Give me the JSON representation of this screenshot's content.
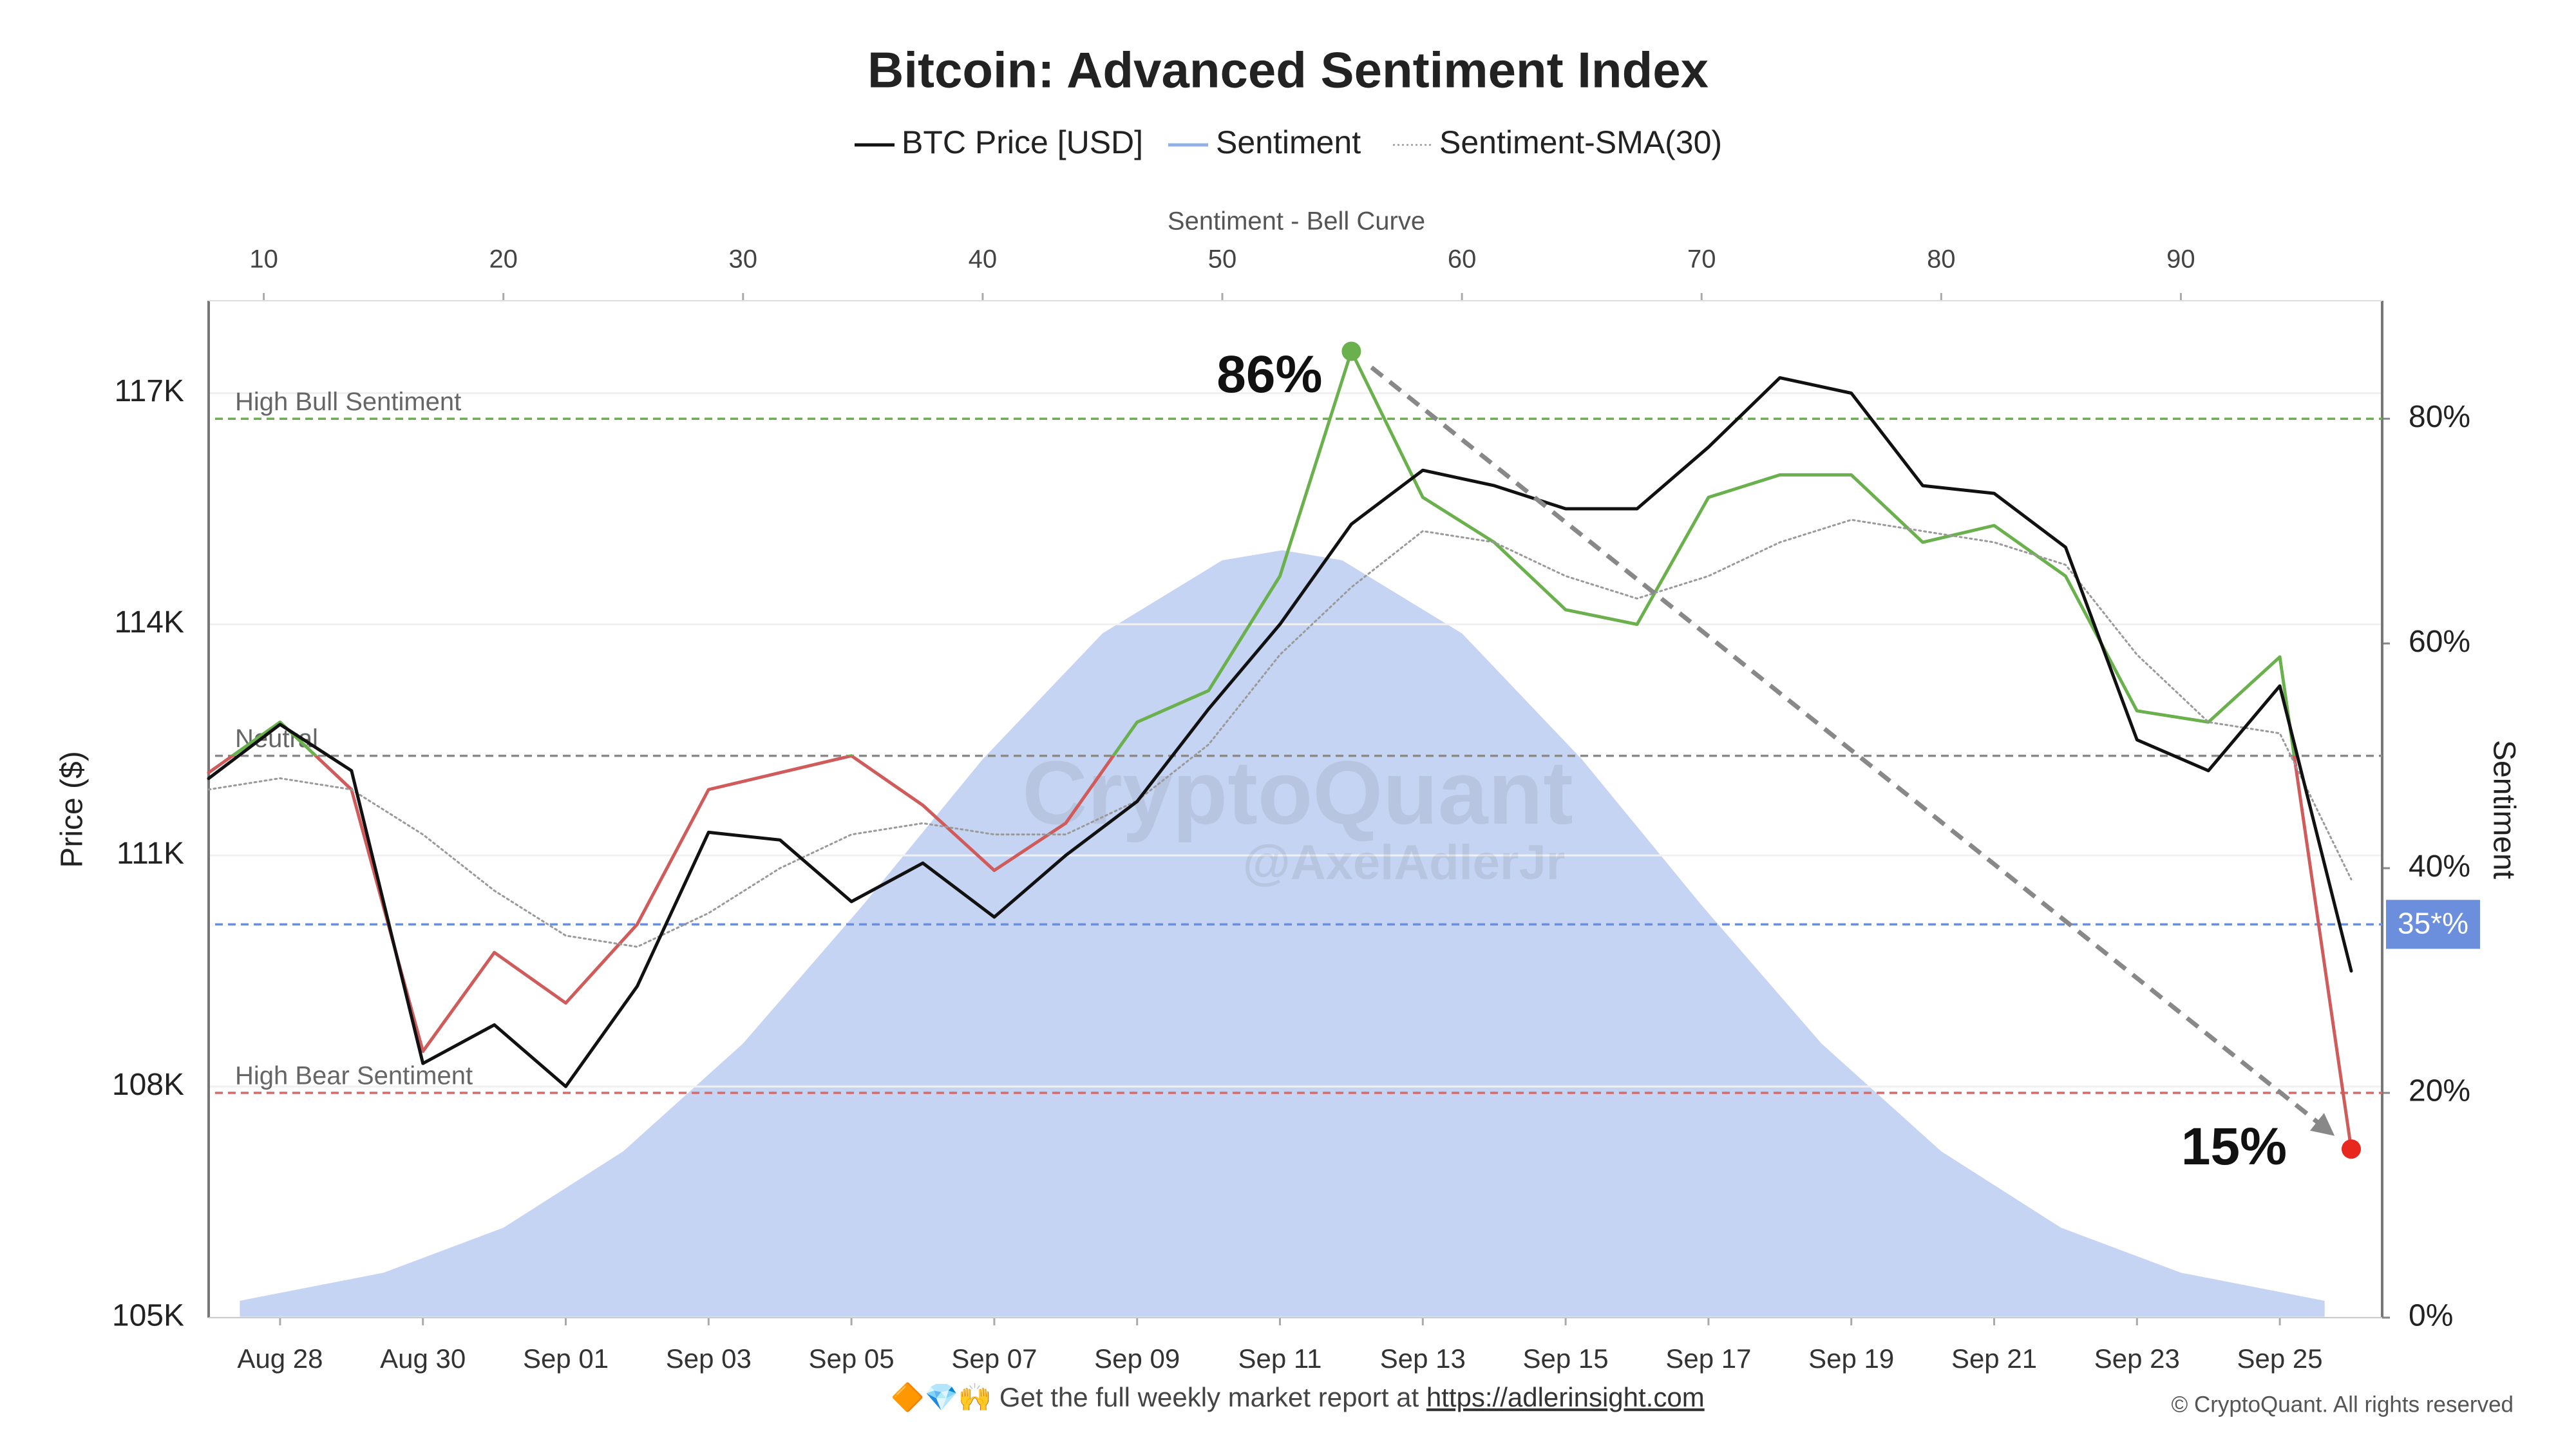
{
  "chart_data": {
    "type": "line",
    "title": "Bitcoin: Advanced Sentiment Index",
    "x": [
      null,
      "Aug 28",
      null,
      "Aug 30",
      null,
      "Sep 01",
      null,
      "Sep 03",
      null,
      "Sep 05",
      null,
      "Sep 07",
      null,
      "Sep 09",
      null,
      "Sep 11",
      null,
      "Sep 13",
      null,
      "Sep 15",
      null,
      "Sep 17",
      null,
      "Sep 19",
      null,
      "Sep 21",
      null,
      "Sep 23",
      null,
      "Sep 25",
      null
    ],
    "series": [
      {
        "name": "BTC Price [USD]",
        "color": "#111111",
        "values": [
          112000,
          112700,
          112100,
          108300,
          108800,
          108000,
          109300,
          111300,
          111200,
          110400,
          110900,
          110200,
          111000,
          111700,
          112900,
          114000,
          115300,
          116000,
          115800,
          115500,
          115500,
          116300,
          117200,
          117000,
          115800,
          115700,
          115000,
          112500,
          112100,
          113200,
          109500
        ]
      },
      {
        "name": "Sentiment",
        "color": "#8fb0e8",
        "color_above": "#6ab04c",
        "color_below": "#cf5b5b",
        "axis": "y2",
        "values": [
          48.5,
          53,
          47,
          23.7,
          32.5,
          28,
          35,
          47,
          48.5,
          50,
          45.6,
          39.8,
          44,
          53,
          55.8,
          66,
          86,
          73,
          69,
          63,
          61.7,
          73,
          75,
          75,
          69,
          70.5,
          66,
          54,
          53,
          58.8,
          15
        ],
        "value_labels": [
          null,
          null,
          null,
          null,
          null,
          null,
          null,
          null,
          null,
          null,
          null,
          null,
          null,
          null,
          null,
          null,
          "86%",
          null,
          null,
          null,
          null,
          null,
          null,
          null,
          null,
          null,
          null,
          null,
          null,
          null,
          "15%"
        ]
      },
      {
        "name": "Sentiment-SMA(30)",
        "color": "#9a9a9a",
        "dash": "dotted",
        "axis": "y2",
        "values": [
          47,
          48,
          47,
          43,
          38,
          34,
          33,
          36,
          40,
          43,
          44,
          43,
          43,
          46,
          51,
          59,
          65,
          70,
          69,
          66,
          64,
          66,
          69,
          71,
          70,
          69,
          67,
          59,
          53,
          52,
          39
        ]
      }
    ],
    "ylabel": "Price ($)",
    "ylim": [
      105000,
      118200
    ],
    "yticks": [
      {
        "value": 105000,
        "label": "105K"
      },
      {
        "value": 108000,
        "label": "108K"
      },
      {
        "value": 111000,
        "label": "111K"
      },
      {
        "value": 114000,
        "label": "114K"
      },
      {
        "value": 117000,
        "label": "117K"
      }
    ],
    "y2label": "Sentiment",
    "y2lim": [
      0,
      90.5
    ],
    "y2ticks": [
      {
        "value": 0,
        "label": "0%"
      },
      {
        "value": 20,
        "label": "20%"
      },
      {
        "value": 40,
        "label": "40%"
      },
      {
        "value": 60,
        "label": "60%"
      },
      {
        "value": 80,
        "label": "80%"
      }
    ],
    "top_axis": {
      "label": "Sentiment - Bell Curve",
      "xlim": [
        7.7,
        98.4
      ],
      "xticks": [
        10,
        20,
        30,
        40,
        50,
        60,
        70,
        80,
        90
      ]
    },
    "bell_curve": {
      "color": "#c6d4f3",
      "x": [
        9,
        15,
        20,
        25,
        30,
        35,
        40,
        45,
        50,
        52.5,
        55,
        60,
        65,
        70,
        75,
        80,
        85,
        90,
        96
      ],
      "values": [
        1.5,
        4.0,
        8.0,
        14.8,
        24.4,
        36.7,
        49.7,
        60.9,
        67.4,
        68.3,
        67.4,
        60.9,
        49.7,
        36.7,
        24.4,
        14.8,
        8.0,
        4.0,
        1.5
      ]
    },
    "hlines": [
      {
        "value": 80,
        "label": "High Bull Sentiment",
        "color": "#6ab04c"
      },
      {
        "value": 50,
        "label": "Neutral",
        "color": "#8a8a8a",
        "split": true
      },
      {
        "value": 20,
        "label": "High Bear Sentiment",
        "color": "#d96a6a"
      },
      {
        "value": 35,
        "label": "35*%",
        "color": "#6b8fdc",
        "current": true
      }
    ],
    "watermark": [
      "CryptoQuant",
      "@AxelAdlerJr"
    ],
    "footer": {
      "text": "🔶💎🙌 Get the full weekly market report at",
      "link": "https://adlerinsight.com"
    },
    "copyright": "© CryptoQuant. All rights reserved"
  }
}
